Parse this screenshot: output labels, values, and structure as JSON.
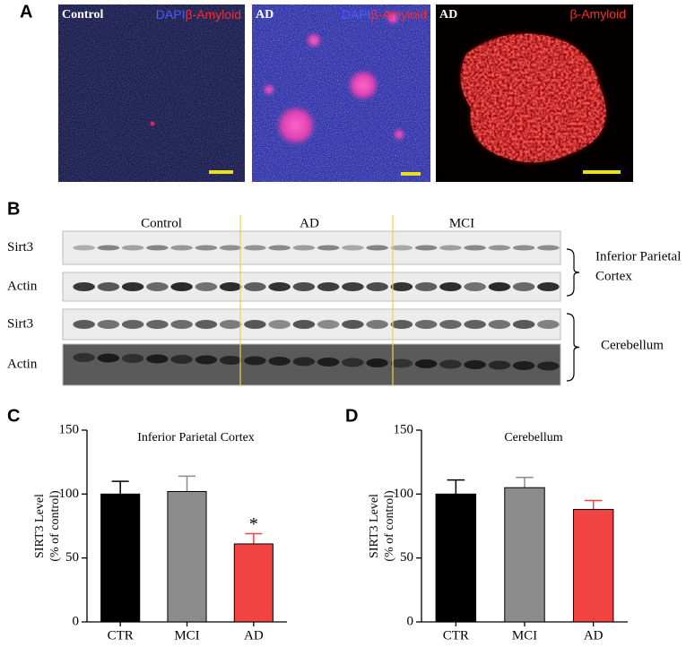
{
  "panel_a": {
    "label": "A",
    "images": [
      {
        "group": "Control",
        "stains": [
          "DAPI",
          "β-Amyloid"
        ]
      },
      {
        "group": "AD",
        "stains": [
          "DAPI",
          "β-Amyloid"
        ]
      },
      {
        "group": "AD",
        "stains": [
          "β-Amyloid"
        ]
      }
    ]
  },
  "panel_b": {
    "label": "B",
    "groups": [
      "Control",
      "AD",
      "MCI"
    ],
    "blots": [
      {
        "label": "Sirt3"
      },
      {
        "label": "Actin"
      },
      {
        "label": "Sirt3"
      },
      {
        "label": "Actin"
      }
    ],
    "regions": [
      {
        "lines": [
          "Inferior  Parietal",
          "Cortex"
        ]
      },
      {
        "lines": [
          "Cerebellum"
        ]
      }
    ]
  },
  "chart_data": [
    {
      "type": "bar",
      "panel_label": "C",
      "title": "Inferior  Parietal  Cortex",
      "y_label": [
        "SIRT3 Level",
        "(% of control)"
      ],
      "categories": [
        "CTR",
        "MCI",
        "AD"
      ],
      "values": [
        100,
        102,
        61
      ],
      "errors": [
        10,
        12,
        8
      ],
      "colors": [
        "#000000",
        "#8c8c8c",
        "#f24343"
      ],
      "annotations": [
        {
          "text": "*",
          "category": "AD"
        }
      ],
      "ylim": [
        0,
        150
      ],
      "yticks": [
        0,
        50,
        100,
        150
      ]
    },
    {
      "type": "bar",
      "panel_label": "D",
      "title": "Cerebellum",
      "y_label": [
        "SIRT3 Level",
        "(% of control)"
      ],
      "categories": [
        "CTR",
        "MCI",
        "AD"
      ],
      "values": [
        100,
        105,
        88
      ],
      "errors": [
        11,
        8,
        7
      ],
      "colors": [
        "#000000",
        "#8c8c8c",
        "#f24343"
      ],
      "ylim": [
        0,
        150
      ],
      "yticks": [
        0,
        50,
        100,
        150
      ]
    }
  ]
}
